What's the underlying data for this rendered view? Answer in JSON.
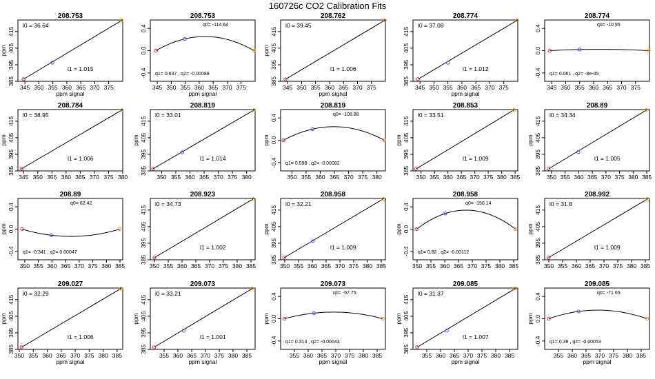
{
  "figure": {
    "title": "160726c   CO2 Calibration Fits"
  },
  "colors": {
    "low_point": "#e0303a",
    "mid_point": "#7a3fe0",
    "high_point": "#f0a020",
    "line": "#000000"
  },
  "chart_data": [
    {
      "type": "line",
      "kind": "linear",
      "title": "208.753",
      "xlabel": "ppm signal",
      "ylabel": "ppm",
      "xlim": [
        342.5,
        380
      ],
      "ylim": [
        385,
        422
      ],
      "xticks": [
        345,
        350,
        355,
        360,
        365,
        370,
        375
      ],
      "yticks": [
        385,
        395,
        405,
        415
      ],
      "points": {
        "x": [
          344.5,
          354.8,
          379.6
        ],
        "y": [
          386.3,
          396.3,
          421.7
        ]
      },
      "l0": "l0 =  36.64",
      "l1": "l1 =  1.015"
    },
    {
      "type": "line",
      "kind": "residual",
      "title": "208.753",
      "xlabel": "ppm signal",
      "ylabel": "",
      "xlim": [
        342.5,
        380
      ],
      "ylim": [
        -0.55,
        0.55
      ],
      "xticks": [
        345,
        350,
        355,
        360,
        365,
        370,
        375
      ],
      "yticks": [
        -0.4,
        0.0,
        0.4
      ],
      "points": {
        "x": [
          344.5,
          354.8,
          379.6
        ],
        "y": [
          0,
          0.21,
          0
        ]
      },
      "q0": "q0= -114.64",
      "q12": "q1= 0.637 , q2= -0.00088"
    },
    {
      "type": "line",
      "kind": "linear",
      "title": "208.762",
      "xlabel": "ppm signal",
      "ylabel": "ppm",
      "xlim": [
        342.5,
        380
      ],
      "ylim": [
        385,
        422
      ],
      "xticks": [
        345,
        350,
        355,
        360,
        365,
        370,
        375
      ],
      "yticks": [
        385,
        395,
        405,
        415
      ],
      "points": {
        "x": [
          344.2,
          379.8
        ],
        "y": [
          386.2,
          421.8
        ]
      },
      "l0": "l0 =  39.45",
      "l1": "l1 =  1.006"
    },
    {
      "type": "line",
      "kind": "linear",
      "title": "208.774",
      "xlabel": "ppm signal",
      "ylabel": "",
      "xlim": [
        342.5,
        380
      ],
      "ylim": [
        385,
        422
      ],
      "xticks": [
        345,
        350,
        355,
        360,
        365,
        370,
        375
      ],
      "yticks": [
        385,
        395,
        405,
        415
      ],
      "points": {
        "x": [
          344.3,
          355.0,
          379.7
        ],
        "y": [
          386.3,
          396.2,
          421.7
        ]
      },
      "l0": "l0 =  37.08",
      "l1": "l1 =  1.012"
    },
    {
      "type": "line",
      "kind": "residual",
      "title": "208.774",
      "xlabel": "",
      "ylabel": "",
      "xlim": [
        342.5,
        380
      ],
      "ylim": [
        -0.55,
        0.55
      ],
      "xticks": [
        345,
        350,
        355,
        360,
        365,
        370,
        375
      ],
      "yticks": [
        -0.4,
        0.0,
        0.4
      ],
      "points": {
        "x": [
          344.3,
          355.0,
          379.7
        ],
        "y": [
          0,
          0.02,
          0
        ]
      },
      "q0": "q0= -10.95",
      "q12": "q1= 0.061 , q2= -8e-05"
    },
    {
      "type": "line",
      "kind": "linear",
      "title": "208.784",
      "xlabel": "",
      "ylabel": "ppm",
      "xlim": [
        343,
        380
      ],
      "ylim": [
        385,
        422
      ],
      "xticks": [
        345,
        350,
        355,
        360,
        365,
        370,
        375,
        380
      ],
      "yticks": [
        385,
        395,
        405,
        415
      ],
      "points": {
        "x": [
          344.3,
          379.7
        ],
        "y": [
          386.3,
          421.7
        ]
      },
      "l0": "l0 =  38.95",
      "l1": "l1 =  1.006"
    },
    {
      "type": "line",
      "kind": "linear",
      "title": "208.819",
      "xlabel": "",
      "ylabel": "ppm",
      "xlim": [
        346,
        383
      ],
      "ylim": [
        385,
        422
      ],
      "xticks": [
        350,
        355,
        360,
        365,
        370,
        375,
        380
      ],
      "yticks": [
        385,
        395,
        405,
        415
      ],
      "points": {
        "x": [
          347.0,
          357.3,
          382.6
        ],
        "y": [
          386.3,
          396.2,
          421.7
        ]
      },
      "l0": "l0 =  33.01",
      "l1": "l1 =  1.014"
    },
    {
      "type": "line",
      "kind": "residual",
      "title": "208.819",
      "xlabel": "",
      "ylabel": "ppm",
      "xlim": [
        346,
        383
      ],
      "ylim": [
        -0.55,
        0.55
      ],
      "xticks": [
        350,
        355,
        360,
        365,
        370,
        375,
        380
      ],
      "yticks": [
        -0.4,
        0.0,
        0.4
      ],
      "points": {
        "x": [
          347.0,
          357.3,
          382.6
        ],
        "y": [
          0,
          0.2,
          0
        ]
      },
      "q0": "q0= -108.88",
      "q12": "q1= 0.598 , q2= -0.00082"
    },
    {
      "type": "line",
      "kind": "linear",
      "title": "208.853",
      "xlabel": "",
      "ylabel": "ppm",
      "xlim": [
        347,
        386
      ],
      "ylim": [
        385,
        422
      ],
      "xticks": [
        350,
        355,
        360,
        365,
        370,
        375,
        380,
        385
      ],
      "yticks": [
        385,
        395,
        405,
        415
      ],
      "points": {
        "x": [
          348.2,
          384.6
        ],
        "y": [
          386.2,
          421.8
        ]
      },
      "l0": "l0 =  33.51",
      "l1": "l1 =  1.009"
    },
    {
      "type": "line",
      "kind": "linear",
      "title": "208.89",
      "xlabel": "",
      "ylabel": "ppm",
      "xlim": [
        347.5,
        386
      ],
      "ylim": [
        385,
        422
      ],
      "xticks": [
        350,
        355,
        360,
        365,
        370,
        375,
        380,
        385
      ],
      "yticks": [
        385,
        395,
        405,
        415
      ],
      "points": {
        "x": [
          349.0,
          359.8,
          384.9
        ],
        "y": [
          386.3,
          396.3,
          421.7
        ]
      },
      "l0": "l0 =  34.34",
      "l1": "l1 =  1.005"
    },
    {
      "type": "line",
      "kind": "residual",
      "title": "208.89",
      "xlabel": "",
      "ylabel": "ppm",
      "xlim": [
        347.5,
        386
      ],
      "ylim": [
        -0.55,
        0.55
      ],
      "xticks": [
        350,
        355,
        360,
        365,
        370,
        375,
        380,
        385
      ],
      "yticks": [
        -0.4,
        0.0,
        0.4
      ],
      "points": {
        "x": [
          349.0,
          359.8,
          384.9
        ],
        "y": [
          0,
          -0.11,
          0
        ]
      },
      "q0": "q0= 62.42",
      "q12": "q1= -0.341 , q2= 0.00047"
    },
    {
      "type": "line",
      "kind": "linear",
      "title": "208.923",
      "xlabel": "",
      "ylabel": "",
      "xlim": [
        348.5,
        386.5
      ],
      "ylim": [
        385,
        422
      ],
      "xticks": [
        350,
        355,
        360,
        365,
        370,
        375,
        380,
        385
      ],
      "yticks": [
        385,
        395,
        405,
        415
      ],
      "points": {
        "x": [
          350.0,
          385.8
        ],
        "y": [
          386.3,
          421.7
        ]
      },
      "l0": "l0 =  34.73",
      "l1": "l1 =  1.002"
    },
    {
      "type": "line",
      "kind": "linear",
      "title": "208.958",
      "xlabel": "",
      "ylabel": "ppm",
      "xlim": [
        348.5,
        386.5
      ],
      "ylim": [
        385,
        422
      ],
      "xticks": [
        350,
        355,
        360,
        365,
        370,
        375,
        380,
        385
      ],
      "yticks": [
        385,
        395,
        405,
        415
      ],
      "points": {
        "x": [
          349.8,
          360.2,
          385.7
        ],
        "y": [
          386.3,
          396.2,
          421.7
        ]
      },
      "l0": "l0 =  32.21",
      "l1": "l1 =  1.009"
    },
    {
      "type": "line",
      "kind": "residual",
      "title": "208.958",
      "xlabel": "",
      "ylabel": "ppm",
      "xlim": [
        348.5,
        386.5
      ],
      "ylim": [
        -0.55,
        0.55
      ],
      "xticks": [
        350,
        355,
        360,
        365,
        370,
        375,
        380,
        385
      ],
      "yticks": [
        -0.4,
        0.0,
        0.4
      ],
      "points": {
        "x": [
          349.8,
          360.2,
          385.7
        ],
        "y": [
          0,
          0.28,
          0
        ]
      },
      "q0": "q0= -150.14",
      "q12": "q1= 0.82 , q2= -0.00112"
    },
    {
      "type": "line",
      "kind": "linear",
      "title": "208.992",
      "xlabel": "",
      "ylabel": "ppm",
      "xlim": [
        348.5,
        386.5
      ],
      "ylim": [
        385,
        422
      ],
      "xticks": [
        350,
        355,
        360,
        365,
        370,
        375,
        380,
        385
      ],
      "yticks": [
        385,
        395,
        405,
        415
      ],
      "points": {
        "x": [
          349.9,
          385.8
        ],
        "y": [
          386.3,
          421.7
        ]
      },
      "l0": "l0 =  31.8",
      "l1": "l1 =  1.009"
    },
    {
      "type": "line",
      "kind": "linear",
      "title": "209.027",
      "xlabel": "ppm signal",
      "ylabel": "ppm",
      "xlim": [
        349.5,
        387
      ],
      "ylim": [
        385,
        422
      ],
      "xticks": [
        350,
        355,
        360,
        365,
        370,
        375,
        380,
        385
      ],
      "yticks": [
        385,
        395,
        405,
        415
      ],
      "points": {
        "x": [
          350.8,
          386.4
        ],
        "y": [
          386.3,
          421.7
        ]
      },
      "l0": "l0 =  32.29",
      "l1": "l1 =  1.006"
    },
    {
      "type": "line",
      "kind": "linear",
      "title": "209.073",
      "xlabel": "ppm signal",
      "ylabel": "ppm",
      "xlim": [
        350,
        388
      ],
      "ylim": [
        385,
        422
      ],
      "xticks": [
        355,
        360,
        365,
        370,
        375,
        380,
        385
      ],
      "yticks": [
        385,
        395,
        405,
        415
      ],
      "points": {
        "x": [
          351.4,
          362.1,
          387.0
        ],
        "y": [
          386.3,
          396.3,
          421.7
        ]
      },
      "l0": "l0 =  33.21",
      "l1": "l1 =  1.001"
    },
    {
      "type": "line",
      "kind": "residual",
      "title": "209.073",
      "xlabel": "ppm signal",
      "ylabel": "ppm",
      "xlim": [
        350,
        388
      ],
      "ylim": [
        -0.55,
        0.55
      ],
      "xticks": [
        355,
        360,
        365,
        370,
        375,
        380,
        385
      ],
      "yticks": [
        -0.4,
        0.0,
        0.4
      ],
      "points": {
        "x": [
          351.4,
          362.1,
          387.0
        ],
        "y": [
          0,
          0.1,
          0
        ]
      },
      "q0": "q0= -57.75",
      "q12": "q1= 0.314 , q2= -0.00043"
    },
    {
      "type": "line",
      "kind": "linear",
      "title": "209.085",
      "xlabel": "ppm signal",
      "ylabel": "ppm",
      "xlim": [
        350,
        388
      ],
      "ylim": [
        385,
        422
      ],
      "xticks": [
        355,
        360,
        365,
        370,
        375,
        380,
        385
      ],
      "yticks": [
        385,
        395,
        405,
        415
      ],
      "points": {
        "x": [
          351.5,
          362.3,
          387.1
        ],
        "y": [
          386.3,
          396.3,
          421.7
        ]
      },
      "l0": "l0 =  31.37",
      "l1": "l1 =  1.007"
    },
    {
      "type": "line",
      "kind": "residual",
      "title": "209.085",
      "xlabel": "ppm signal",
      "ylabel": "ppm",
      "xlim": [
        350,
        388
      ],
      "ylim": [
        -0.55,
        0.55
      ],
      "xticks": [
        355,
        360,
        365,
        370,
        375,
        380,
        385
      ],
      "yticks": [
        -0.4,
        0.0,
        0.4
      ],
      "points": {
        "x": [
          351.5,
          362.3,
          387.1
        ],
        "y": [
          0,
          0.13,
          0
        ]
      },
      "q0": "q0= -71.65",
      "q12": "q1= 0.39 , q2= -0.00053"
    }
  ]
}
